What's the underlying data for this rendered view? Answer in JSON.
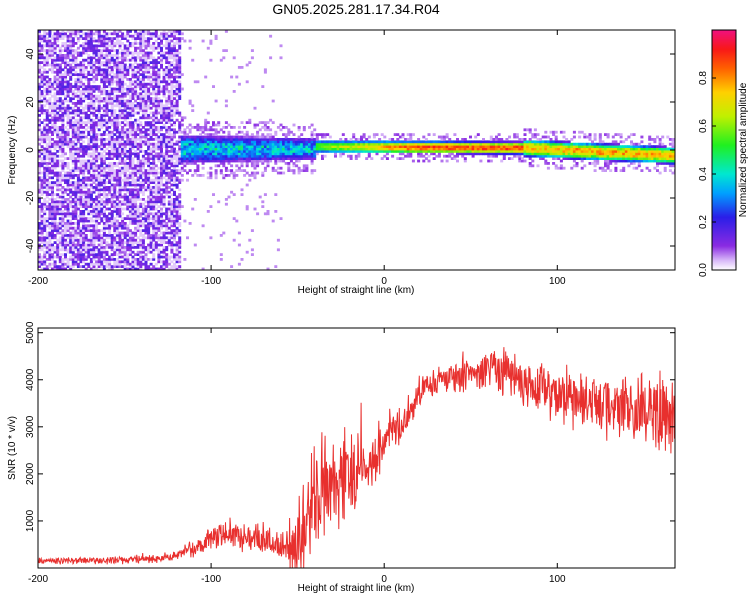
{
  "title": "GN05.2025.281.17.34.R04",
  "colors": {
    "snr_line": "#e8302e",
    "background": "#ffffff",
    "axis": "#000000"
  },
  "chart_data": [
    {
      "type": "heatmap",
      "name": "spectrogram",
      "xlabel": "Height of straight line (km)",
      "ylabel": "Frequency (Hz)",
      "xlim": [
        -200,
        168
      ],
      "ylim": [
        -50,
        50
      ],
      "xticks": [
        -200,
        -100,
        0,
        100
      ],
      "yticks": [
        -40,
        -20,
        0,
        20,
        40
      ],
      "colorbar": {
        "label": "Normalized spectral amplitude",
        "range": [
          0,
          1
        ],
        "ticks": [
          0.0,
          0.2,
          0.4,
          0.6,
          0.8
        ],
        "colormap": "rainbow (purple to magenta)"
      },
      "regions": [
        {
          "x_from": -200,
          "x_to": -118,
          "description": "broadband noise",
          "amplitude": 0.1
        },
        {
          "x_from": -118,
          "x_to": -40,
          "freq_center": 0,
          "freq_halfwidth": 6,
          "amplitude": 0.35
        },
        {
          "x_from": -40,
          "x_to": 80,
          "freq_center": 1,
          "freq_halfwidth": 3,
          "amplitude": 0.9
        },
        {
          "x_from": 80,
          "x_to": 168,
          "freq_center": -2,
          "freq_halfwidth": 4,
          "amplitude": 0.85
        }
      ]
    },
    {
      "type": "line",
      "name": "snr",
      "xlabel": "Height of straight line (km)",
      "ylabel": "SNR (10 * v/v)",
      "xlim": [
        -200,
        168
      ],
      "ylim": [
        0,
        5100
      ],
      "xticks": [
        -200,
        -100,
        0,
        100
      ],
      "yticks": [
        1000,
        2000,
        3000,
        4000,
        5000
      ],
      "envelope_x": [
        -200,
        -150,
        -125,
        -110,
        -100,
        -90,
        -80,
        -70,
        -60,
        -50,
        -45,
        -40,
        -35,
        -30,
        -25,
        -20,
        -15,
        -10,
        -5,
        0,
        10,
        20,
        30,
        40,
        50,
        60,
        70,
        80,
        90,
        100,
        110,
        120,
        130,
        140,
        150,
        160,
        168
      ],
      "envelope_y": [
        150,
        170,
        220,
        400,
        550,
        700,
        650,
        600,
        450,
        500,
        1100,
        1500,
        1700,
        1800,
        1900,
        2000,
        2050,
        2150,
        2300,
        2700,
        3100,
        3700,
        3950,
        4050,
        4100,
        4150,
        4150,
        3950,
        3800,
        3700,
        3600,
        3500,
        3450,
        3400,
        3350,
        3300,
        3300
      ],
      "noise_amp_x": [
        -200,
        -120,
        -100,
        -60,
        -45,
        -25,
        -10,
        0,
        30,
        80,
        120,
        168
      ],
      "noise_amp_y": [
        80,
        120,
        350,
        400,
        1400,
        1400,
        600,
        500,
        350,
        600,
        800,
        1100
      ]
    }
  ]
}
